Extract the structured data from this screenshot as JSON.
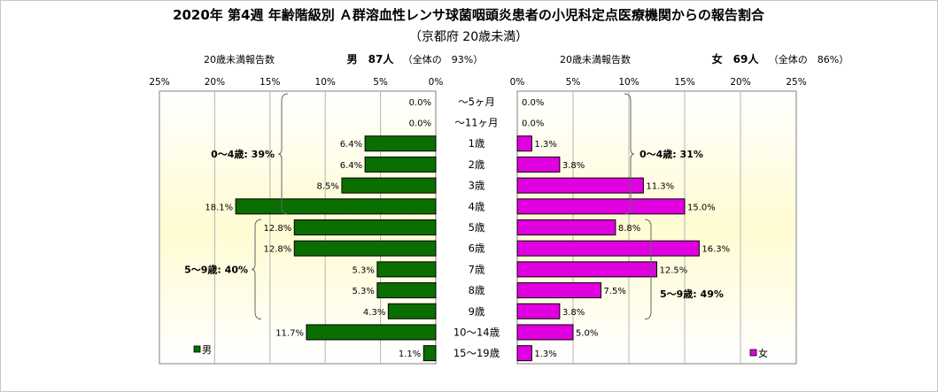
{
  "chart_data": {
    "type": "bar",
    "orientation": "horizontal-population-pyramid",
    "title": "2020年 第4週 年齢階級別 Ａ群溶血性レンサ球菌咽頭炎患者の小児科定点医療機関からの報告割合",
    "subtitle": "（京都府 20歳未満）",
    "categories": [
      "～5ヶ月",
      "～11ヶ月",
      "1歳",
      "2歳",
      "3歳",
      "4歳",
      "5歳",
      "6歳",
      "7歳",
      "8歳",
      "9歳",
      "10～14歳",
      "15～19歳"
    ],
    "xlim": [
      0,
      25
    ],
    "ticks": [
      {
        "value": 25,
        "label": "25%"
      },
      {
        "value": 20,
        "label": "20%"
      },
      {
        "value": 15,
        "label": "15%"
      },
      {
        "value": 10,
        "label": "10%"
      },
      {
        "value": 5,
        "label": "5%"
      },
      {
        "value": 0,
        "label": "0%"
      }
    ],
    "ticks_right": [
      {
        "value": 0,
        "label": "0%"
      },
      {
        "value": 5,
        "label": "5%"
      },
      {
        "value": 10,
        "label": "10%"
      },
      {
        "value": 15,
        "label": "15%"
      },
      {
        "value": 20,
        "label": "20%"
      },
      {
        "value": 25,
        "label": "25%"
      }
    ],
    "series": [
      {
        "name": "男",
        "side": "left",
        "color": "#0a6e00",
        "header_label": "20歳未満報告数",
        "header_count": "男　87人",
        "header_share": "（全体の　93%）",
        "values": [
          0.0,
          0.0,
          6.4,
          6.4,
          8.5,
          18.1,
          12.8,
          12.8,
          5.3,
          5.3,
          4.3,
          11.7,
          1.1
        ],
        "labels": [
          "0.0%",
          "0.0%",
          "6.4%",
          "6.4%",
          "8.5%",
          "18.1%",
          "12.8%",
          "12.8%",
          "5.3%",
          "5.3%",
          "4.3%",
          "11.7%",
          "1.1%"
        ],
        "groups": [
          {
            "label": "0～4歳: 39%",
            "from": 0,
            "to": 5
          },
          {
            "label": "5～9歳: 40%",
            "from": 6,
            "to": 10
          }
        ]
      },
      {
        "name": "女",
        "side": "right",
        "color": "#e000e0",
        "header_label": "20歳未満報告数",
        "header_count": "女　69人",
        "header_share": "（全体の　86%）",
        "values": [
          0.0,
          0.0,
          1.3,
          3.8,
          11.3,
          15.0,
          8.8,
          16.3,
          12.5,
          7.5,
          3.8,
          5.0,
          1.3
        ],
        "labels": [
          "0.0%",
          "0.0%",
          "1.3%",
          "3.8%",
          "11.3%",
          "15.0%",
          "8.8%",
          "16.3%",
          "12.5%",
          "7.5%",
          "3.8%",
          "5.0%",
          "1.3%"
        ],
        "groups": [
          {
            "label": "0～4歳: 31%",
            "from": 0,
            "to": 5
          },
          {
            "label": "5～9歳: 49%",
            "from": 6,
            "to": 10
          }
        ]
      }
    ],
    "grid": true,
    "legend": "inside-bottom"
  }
}
